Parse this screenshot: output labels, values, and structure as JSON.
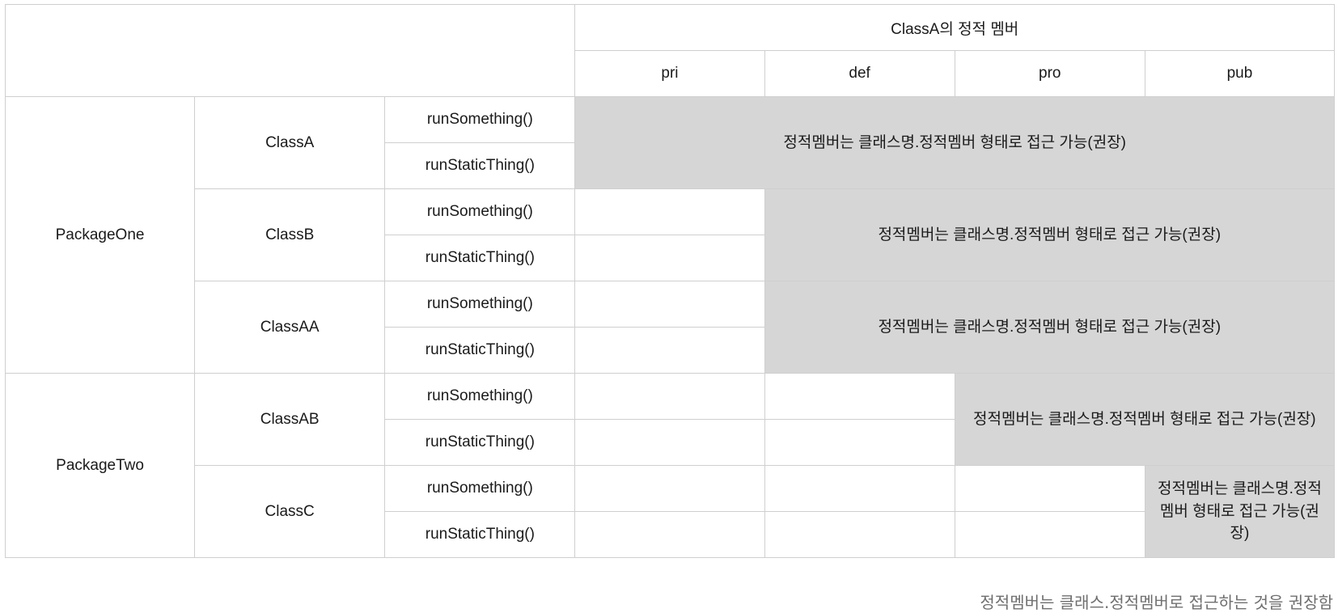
{
  "header": {
    "group_title": "ClassA의 정적 멤버",
    "columns": [
      "pri",
      "def",
      "pro",
      "pub"
    ]
  },
  "note": "정적멤버는 클래스명.정적멤버 형태로 접근 가능(권장)",
  "packages": [
    {
      "name": "PackageOne",
      "classes": [
        {
          "name": "ClassA",
          "methods": [
            "runSomething()",
            "runStaticThing()"
          ],
          "accessible_from": "pri"
        },
        {
          "name": "ClassB",
          "methods": [
            "runSomething()",
            "runStaticThing()"
          ],
          "accessible_from": "def"
        },
        {
          "name": "ClassAA",
          "methods": [
            "runSomething()",
            "runStaticThing()"
          ],
          "accessible_from": "def"
        }
      ]
    },
    {
      "name": "PackageTwo",
      "classes": [
        {
          "name": "ClassAB",
          "methods": [
            "runSomething()",
            "runStaticThing()"
          ],
          "accessible_from": "pro"
        },
        {
          "name": "ClassC",
          "methods": [
            "runSomething()",
            "runStaticThing()"
          ],
          "accessible_from": "pub"
        }
      ]
    }
  ],
  "footnote": "정적멤버는 클래스.정적멤버로 접근하는 것을 권장함",
  "colors": {
    "shaded_cell": "#d6d6d6",
    "border": "#cfcfcf",
    "footnote_text": "#6f6f6f"
  }
}
